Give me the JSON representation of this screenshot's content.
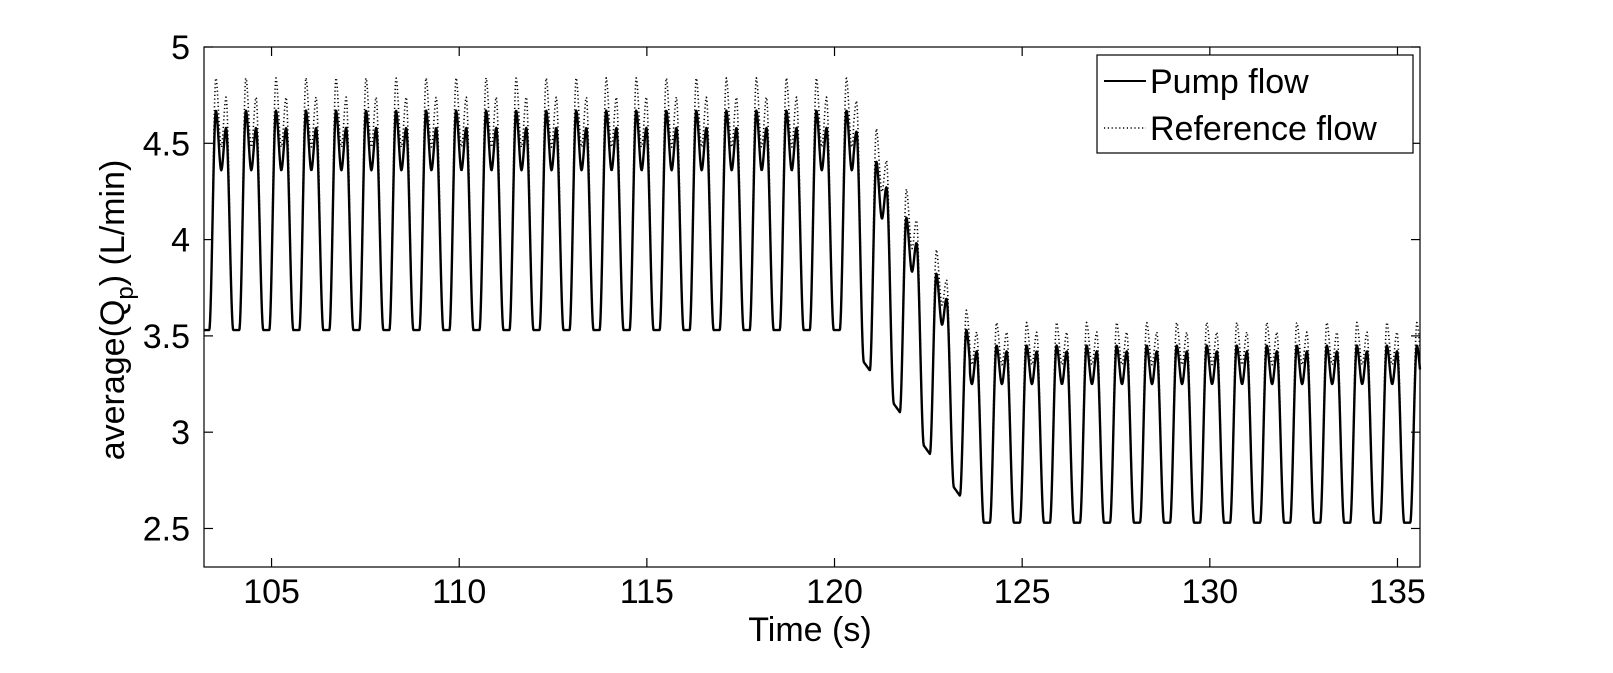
{
  "chart_data": {
    "type": "line",
    "title": "",
    "xlabel": "Time (s)",
    "ylabel_main": "average(Q",
    "ylabel_sub": "p",
    "ylabel_tail": ") (L/min)",
    "xlim": [
      103.2,
      135.6
    ],
    "ylim": [
      2.3,
      5.0
    ],
    "xticks": [
      105,
      110,
      115,
      120,
      125,
      130,
      135
    ],
    "yticks": [
      2.5,
      3,
      3.5,
      4,
      4.5,
      5
    ],
    "ytick_labels": [
      "2.5",
      "3",
      "3.5",
      "4",
      "4.5",
      "5"
    ],
    "grid": false,
    "legend_position": "top-right",
    "period_s": 0.8,
    "series": [
      {
        "name": "Pump flow",
        "style": "solid",
        "color": "#000000",
        "phases": [
          {
            "t_start": 103.2,
            "t_end": 120.5,
            "peak": 4.67,
            "second_peak": 4.58,
            "shoulder_dip": 4.36,
            "trough": 3.53
          },
          {
            "t_start": 120.5,
            "t_end": 123.6,
            "peak_from": 4.63,
            "peak_to": 3.5,
            "trough_from": 3.44,
            "trough_to": 2.6
          },
          {
            "t_start": 123.6,
            "t_end": 135.6,
            "peak": 3.45,
            "second_peak": 3.42,
            "shoulder_dip": 3.25,
            "trough": 2.53
          }
        ]
      },
      {
        "name": "Reference flow",
        "style": "dotted",
        "color": "#000000",
        "phases": [
          {
            "t_start": 103.2,
            "t_end": 120.5,
            "peak": 4.84,
            "second_peak": 4.74,
            "shoulder_dip": 4.48,
            "trough": 3.53
          },
          {
            "t_start": 120.5,
            "t_end": 123.6,
            "peak_from": 4.82,
            "peak_to": 3.6,
            "trough_from": 3.44,
            "trough_to": 2.6
          },
          {
            "t_start": 123.6,
            "t_end": 135.6,
            "peak": 3.57,
            "second_peak": 3.52,
            "shoulder_dip": 3.35,
            "trough": 2.53
          }
        ]
      }
    ]
  }
}
